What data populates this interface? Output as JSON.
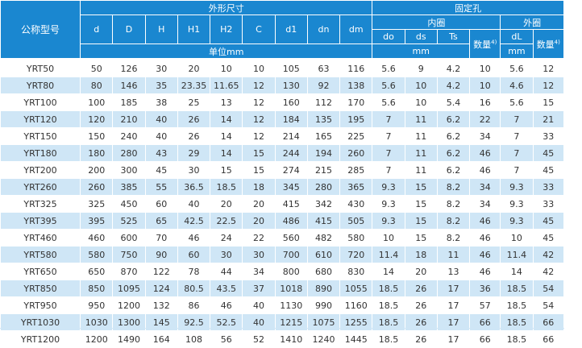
{
  "headers": {
    "model": "公称型号",
    "outer_dims": "外形尺寸",
    "fixing_holes": "固定孔",
    "inner_ring": "内圈",
    "outer_ring": "外圈",
    "dim_cols": [
      "d",
      "D",
      "H",
      "H1",
      "H2",
      "C",
      "d1",
      "dn",
      "dm"
    ],
    "inner_cols": [
      "do",
      "ds",
      "Ts"
    ],
    "outer_col": "dL",
    "count_label": "数量",
    "footnote_mark": "4)",
    "unit_mm_cn": "单位mm",
    "unit_mm": "mm"
  },
  "rows": [
    [
      "YRT50",
      "50",
      "126",
      "30",
      "20",
      "10",
      "10",
      "105",
      "63",
      "116",
      "5.6",
      "9",
      "4.2",
      "10",
      "5.6",
      "12"
    ],
    [
      "YRT80",
      "80",
      "146",
      "35",
      "23.35",
      "11.65",
      "12",
      "130",
      "92",
      "138",
      "5.6",
      "10",
      "4.2",
      "10",
      "4.6",
      "12"
    ],
    [
      "YRT100",
      "100",
      "185",
      "38",
      "25",
      "13",
      "12",
      "160",
      "112",
      "170",
      "5.6",
      "10",
      "5.4",
      "16",
      "5.6",
      "15"
    ],
    [
      "YRT120",
      "120",
      "210",
      "40",
      "26",
      "14",
      "12",
      "184",
      "135",
      "195",
      "7",
      "11",
      "6.2",
      "22",
      "7",
      "21"
    ],
    [
      "YRT150",
      "150",
      "240",
      "40",
      "26",
      "14",
      "12",
      "214",
      "165",
      "225",
      "7",
      "11",
      "6.2",
      "34",
      "7",
      "33"
    ],
    [
      "YRT180",
      "180",
      "280",
      "43",
      "29",
      "14",
      "15",
      "244",
      "194",
      "260",
      "7",
      "11",
      "6.2",
      "46",
      "7",
      "45"
    ],
    [
      "YRT200",
      "200",
      "300",
      "45",
      "30",
      "15",
      "15",
      "274",
      "215",
      "285",
      "7",
      "11",
      "6.2",
      "46",
      "7",
      "45"
    ],
    [
      "YRT260",
      "260",
      "385",
      "55",
      "36.5",
      "18.5",
      "18",
      "345",
      "280",
      "365",
      "9.3",
      "15",
      "8.2",
      "34",
      "9.3",
      "33"
    ],
    [
      "YRT325",
      "325",
      "450",
      "60",
      "40",
      "20",
      "20",
      "415",
      "342",
      "430",
      "9.3",
      "15",
      "8.2",
      "34",
      "9.3",
      "33"
    ],
    [
      "YRT395",
      "395",
      "525",
      "65",
      "42.5",
      "22.5",
      "20",
      "486",
      "415",
      "505",
      "9.3",
      "15",
      "8.2",
      "46",
      "9.3",
      "45"
    ],
    [
      "YRT460",
      "460",
      "600",
      "70",
      "46",
      "24",
      "22",
      "560",
      "482",
      "580",
      "10",
      "15",
      "8.2",
      "46",
      "10",
      "45"
    ],
    [
      "YRT580",
      "580",
      "750",
      "90",
      "60",
      "30",
      "30",
      "700",
      "610",
      "720",
      "11.4",
      "18",
      "11",
      "46",
      "11.4",
      "42"
    ],
    [
      "YRT650",
      "650",
      "870",
      "122",
      "78",
      "44",
      "34",
      "800",
      "680",
      "830",
      "14",
      "20",
      "13",
      "46",
      "14",
      "42"
    ],
    [
      "YRT850",
      "850",
      "1095",
      "124",
      "80.5",
      "43.5",
      "37",
      "1018",
      "890",
      "1055",
      "18.5",
      "26",
      "17",
      "36",
      "18.5",
      "54"
    ],
    [
      "YRT950",
      "950",
      "1200",
      "132",
      "86",
      "46",
      "40",
      "1130",
      "990",
      "1160",
      "18.5",
      "26",
      "17",
      "57",
      "18.5",
      "54"
    ],
    [
      "YRT1030",
      "1030",
      "1300",
      "145",
      "92.5",
      "52.5",
      "40",
      "1215",
      "1075",
      "1255",
      "18.5",
      "26",
      "17",
      "66",
      "18.5",
      "66"
    ],
    [
      "YRT1200",
      "1200",
      "1490",
      "164",
      "108",
      "56",
      "52",
      "1410",
      "1240",
      "1445",
      "18.5",
      "26",
      "17",
      "66",
      "18.5",
      "66"
    ]
  ],
  "colors": {
    "header_bg": "#1a87d0",
    "stripe_bg": "#cfe6f6",
    "text": "#333333"
  }
}
